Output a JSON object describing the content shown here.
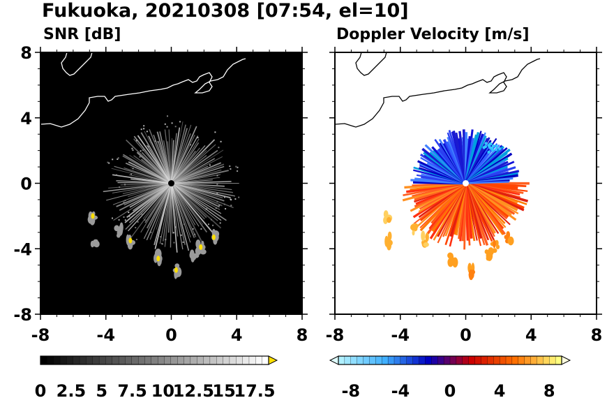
{
  "figure": {
    "title": "Fukuoka, 20210308 [07:54, el=10]"
  },
  "chart_data": [
    {
      "type": "heatmap",
      "title": "SNR [dB]",
      "field": "SNR",
      "xlim": [
        -8,
        8
      ],
      "ylim": [
        -8,
        8
      ],
      "xticks": [
        "-8",
        "-4",
        "0",
        "4",
        "8"
      ],
      "yticks": [
        "8",
        "4",
        "0",
        "-4",
        "-8"
      ],
      "background": "#000000",
      "colorbar": {
        "labels": [
          "0",
          "2.5",
          "5",
          "7.5",
          "10",
          "12.5",
          "15",
          "17.5"
        ],
        "range": [
          0,
          17.5
        ],
        "extend_max_color": "#ffe000",
        "colors": [
          "#000000",
          "#ffffff"
        ]
      },
      "echo_clusters": [
        {
          "x": -4.8,
          "y": -2.0,
          "level": "max"
        },
        {
          "x": -4.7,
          "y": -3.5,
          "level": "mid"
        },
        {
          "x": -2.5,
          "y": -3.5,
          "level": "max"
        },
        {
          "x": -3.2,
          "y": -2.9,
          "level": "mid"
        },
        {
          "x": -0.8,
          "y": -4.6,
          "level": "max"
        },
        {
          "x": 0.3,
          "y": -5.3,
          "level": "max"
        },
        {
          "x": 1.8,
          "y": -3.9,
          "level": "max"
        },
        {
          "x": 2.6,
          "y": -3.3,
          "level": "max"
        },
        {
          "x": 1.4,
          "y": -4.4,
          "level": "mid"
        }
      ]
    },
    {
      "type": "heatmap",
      "title": "Doppler Velocity [m/s]",
      "field": "Doppler Velocity",
      "xlim": [
        -8,
        8
      ],
      "ylim": [
        -8,
        8
      ],
      "xticks": [
        "-8",
        "-4",
        "0",
        "4",
        "8"
      ],
      "yticks": [],
      "background": "#ffffff",
      "colorbar": {
        "labels": [
          "-8",
          "-4",
          "0",
          "4",
          "8"
        ],
        "range": [
          -9,
          9
        ],
        "extend_min_color": "#e0ffff",
        "extend_max_color": "#ffffe0",
        "colors": [
          "#b0f0ff",
          "#40b0ff",
          "#0000c0",
          "#cc0000",
          "#ff7000",
          "#ffff80"
        ]
      },
      "velocity_regions": [
        {
          "region": "north",
          "sign": "negative",
          "color": "#1a1ad0"
        },
        {
          "region": "south",
          "sign": "positive",
          "color": "#ff6a10"
        },
        {
          "region": "west-arc",
          "sign": "positive",
          "color": "#ffb030"
        }
      ]
    }
  ],
  "panels": {
    "left_title": "SNR [dB]",
    "right_title": "Doppler Velocity [m/s]"
  }
}
